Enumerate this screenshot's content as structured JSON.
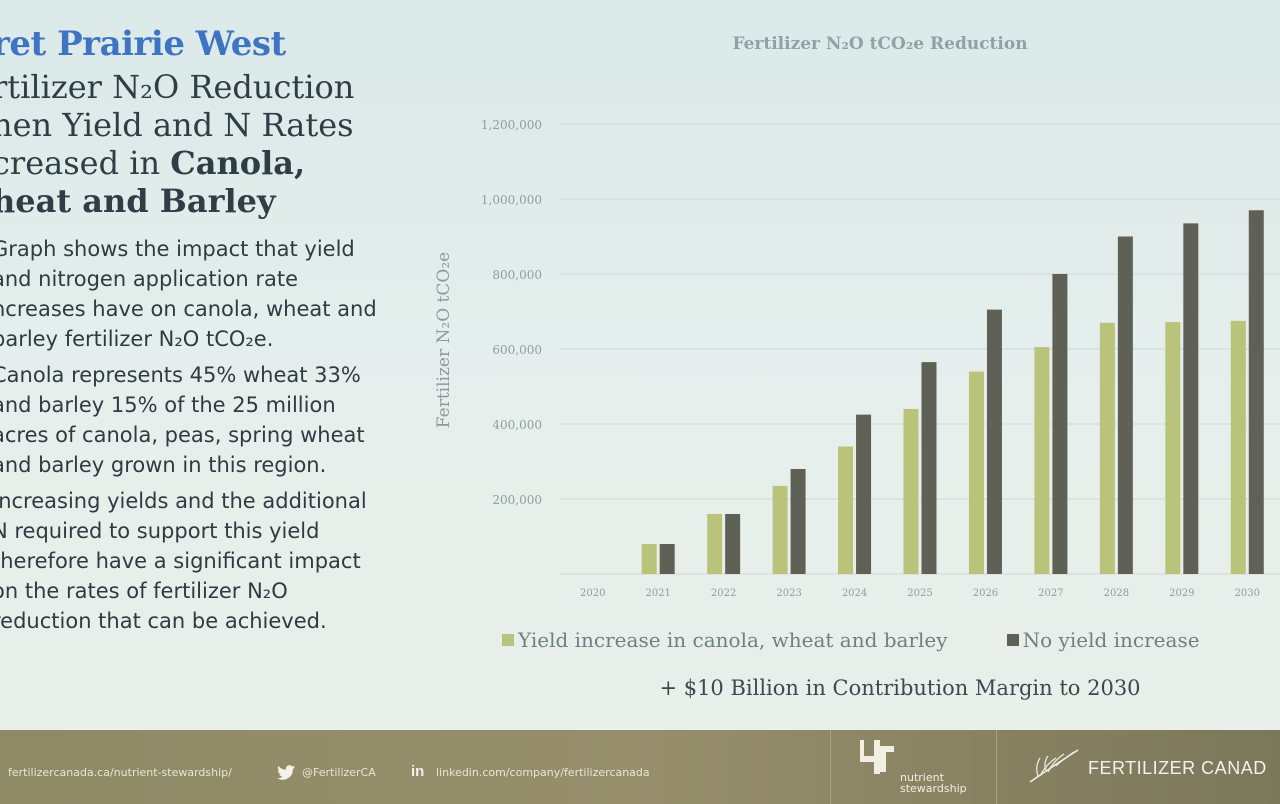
{
  "left": {
    "title": "ret Prairie West",
    "heading_lines": [
      "rtilizer N₂O Reduction",
      "nen Yield and N Rates",
      "creased in "
    ],
    "heading_bold_1": "Canola,",
    "heading_bold_2": "heat and Barley",
    "paragraphs": [
      [
        "Graph shows the impact that yield",
        "and nitrogen application rate",
        "ncreases have on canola, wheat and",
        "barley fertilizer N₂O tCO₂e."
      ],
      [
        "Canola represents 45% wheat 33%",
        "and barley 15% of the 25 million",
        "acres of canola, peas, spring wheat",
        "and barley grown in this region."
      ],
      [
        "Increasing yields and the additional",
        "N required to support this yield",
        "therefore have a significant impact",
        "on the rates of fertilizer N₂O",
        "reduction that can be achieved."
      ]
    ]
  },
  "chart_data": {
    "type": "bar",
    "title": "Fertilizer N₂O tCO₂e Reduction",
    "ylabel": "Fertilizer N₂O tCO₂e",
    "xlabel": "",
    "categories": [
      "2020",
      "2021",
      "2022",
      "2023",
      "2024",
      "2025",
      "2026",
      "2027",
      "2028",
      "2029",
      "2030"
    ],
    "series": [
      {
        "name": "Yield increase in canola, wheat and barley",
        "color": "#b9c47a",
        "values": [
          0,
          80000,
          160000,
          235000,
          340000,
          440000,
          540000,
          605000,
          670000,
          672000,
          675000
        ]
      },
      {
        "name": "No yield increase",
        "color": "#5f6156",
        "values": [
          0,
          80000,
          160000,
          280000,
          425000,
          565000,
          705000,
          800000,
          900000,
          935000,
          970000
        ]
      }
    ],
    "yticks": [
      "",
      "200,000",
      "400,000",
      "600,000",
      "800,000",
      "1,000,000",
      "1,200,000"
    ],
    "ylim": [
      0,
      1200000
    ],
    "grid": true,
    "legend": "bottom"
  },
  "note": "+ $10 Billion in Contribution Margin to 2030",
  "footer": {
    "website": "fertilizercanada.ca/nutrient-stewardship/",
    "twitter": "@FertilizerCA",
    "linkedin_label": "in",
    "linkedin": "linkedin.com/company/fertilizercanada",
    "brand_sub_1": "nutrient",
    "brand_sub_2": "stewardship",
    "company": "FERTILIZER CANAD"
  },
  "colors": {
    "title_blue": "#3f74c2",
    "series_light": "#b9c47a",
    "series_dark": "#5f6156"
  }
}
